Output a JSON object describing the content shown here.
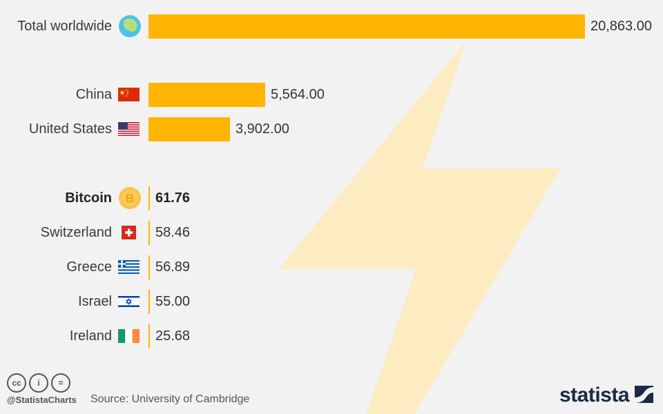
{
  "chart_data": {
    "type": "bar",
    "orientation": "horizontal",
    "categories": [
      "Total worldwide",
      "China",
      "United States",
      "Bitcoin",
      "Switzerland",
      "Greece",
      "Israel",
      "Ireland"
    ],
    "values": [
      20863.0,
      5564.0,
      3902.0,
      61.76,
      58.46,
      56.89,
      55.0,
      25.68
    ],
    "value_labels": [
      "20,863.00",
      "5,564.00",
      "3,902.00",
      "61.76",
      "58.46",
      "56.89",
      "55.00",
      "25.68"
    ],
    "highlight": "Bitcoin",
    "icons": [
      "globe-icon",
      "china-flag-icon",
      "us-flag-icon",
      "bitcoin-icon",
      "switzerland-flag-icon",
      "greece-flag-icon",
      "israel-flag-icon",
      "ireland-flag-icon"
    ],
    "grid": false,
    "colors": {
      "bar": "#ffb400",
      "bolt": "#fdebc2",
      "background": "#f2f2f2"
    }
  },
  "footer": {
    "cc_icons": [
      "cc",
      "by",
      "nd"
    ],
    "cc_glyphs": [
      "cc",
      "i",
      "="
    ],
    "handle": "@StatistaCharts",
    "source": "Source: University of Cambridge",
    "brand": "statista"
  }
}
